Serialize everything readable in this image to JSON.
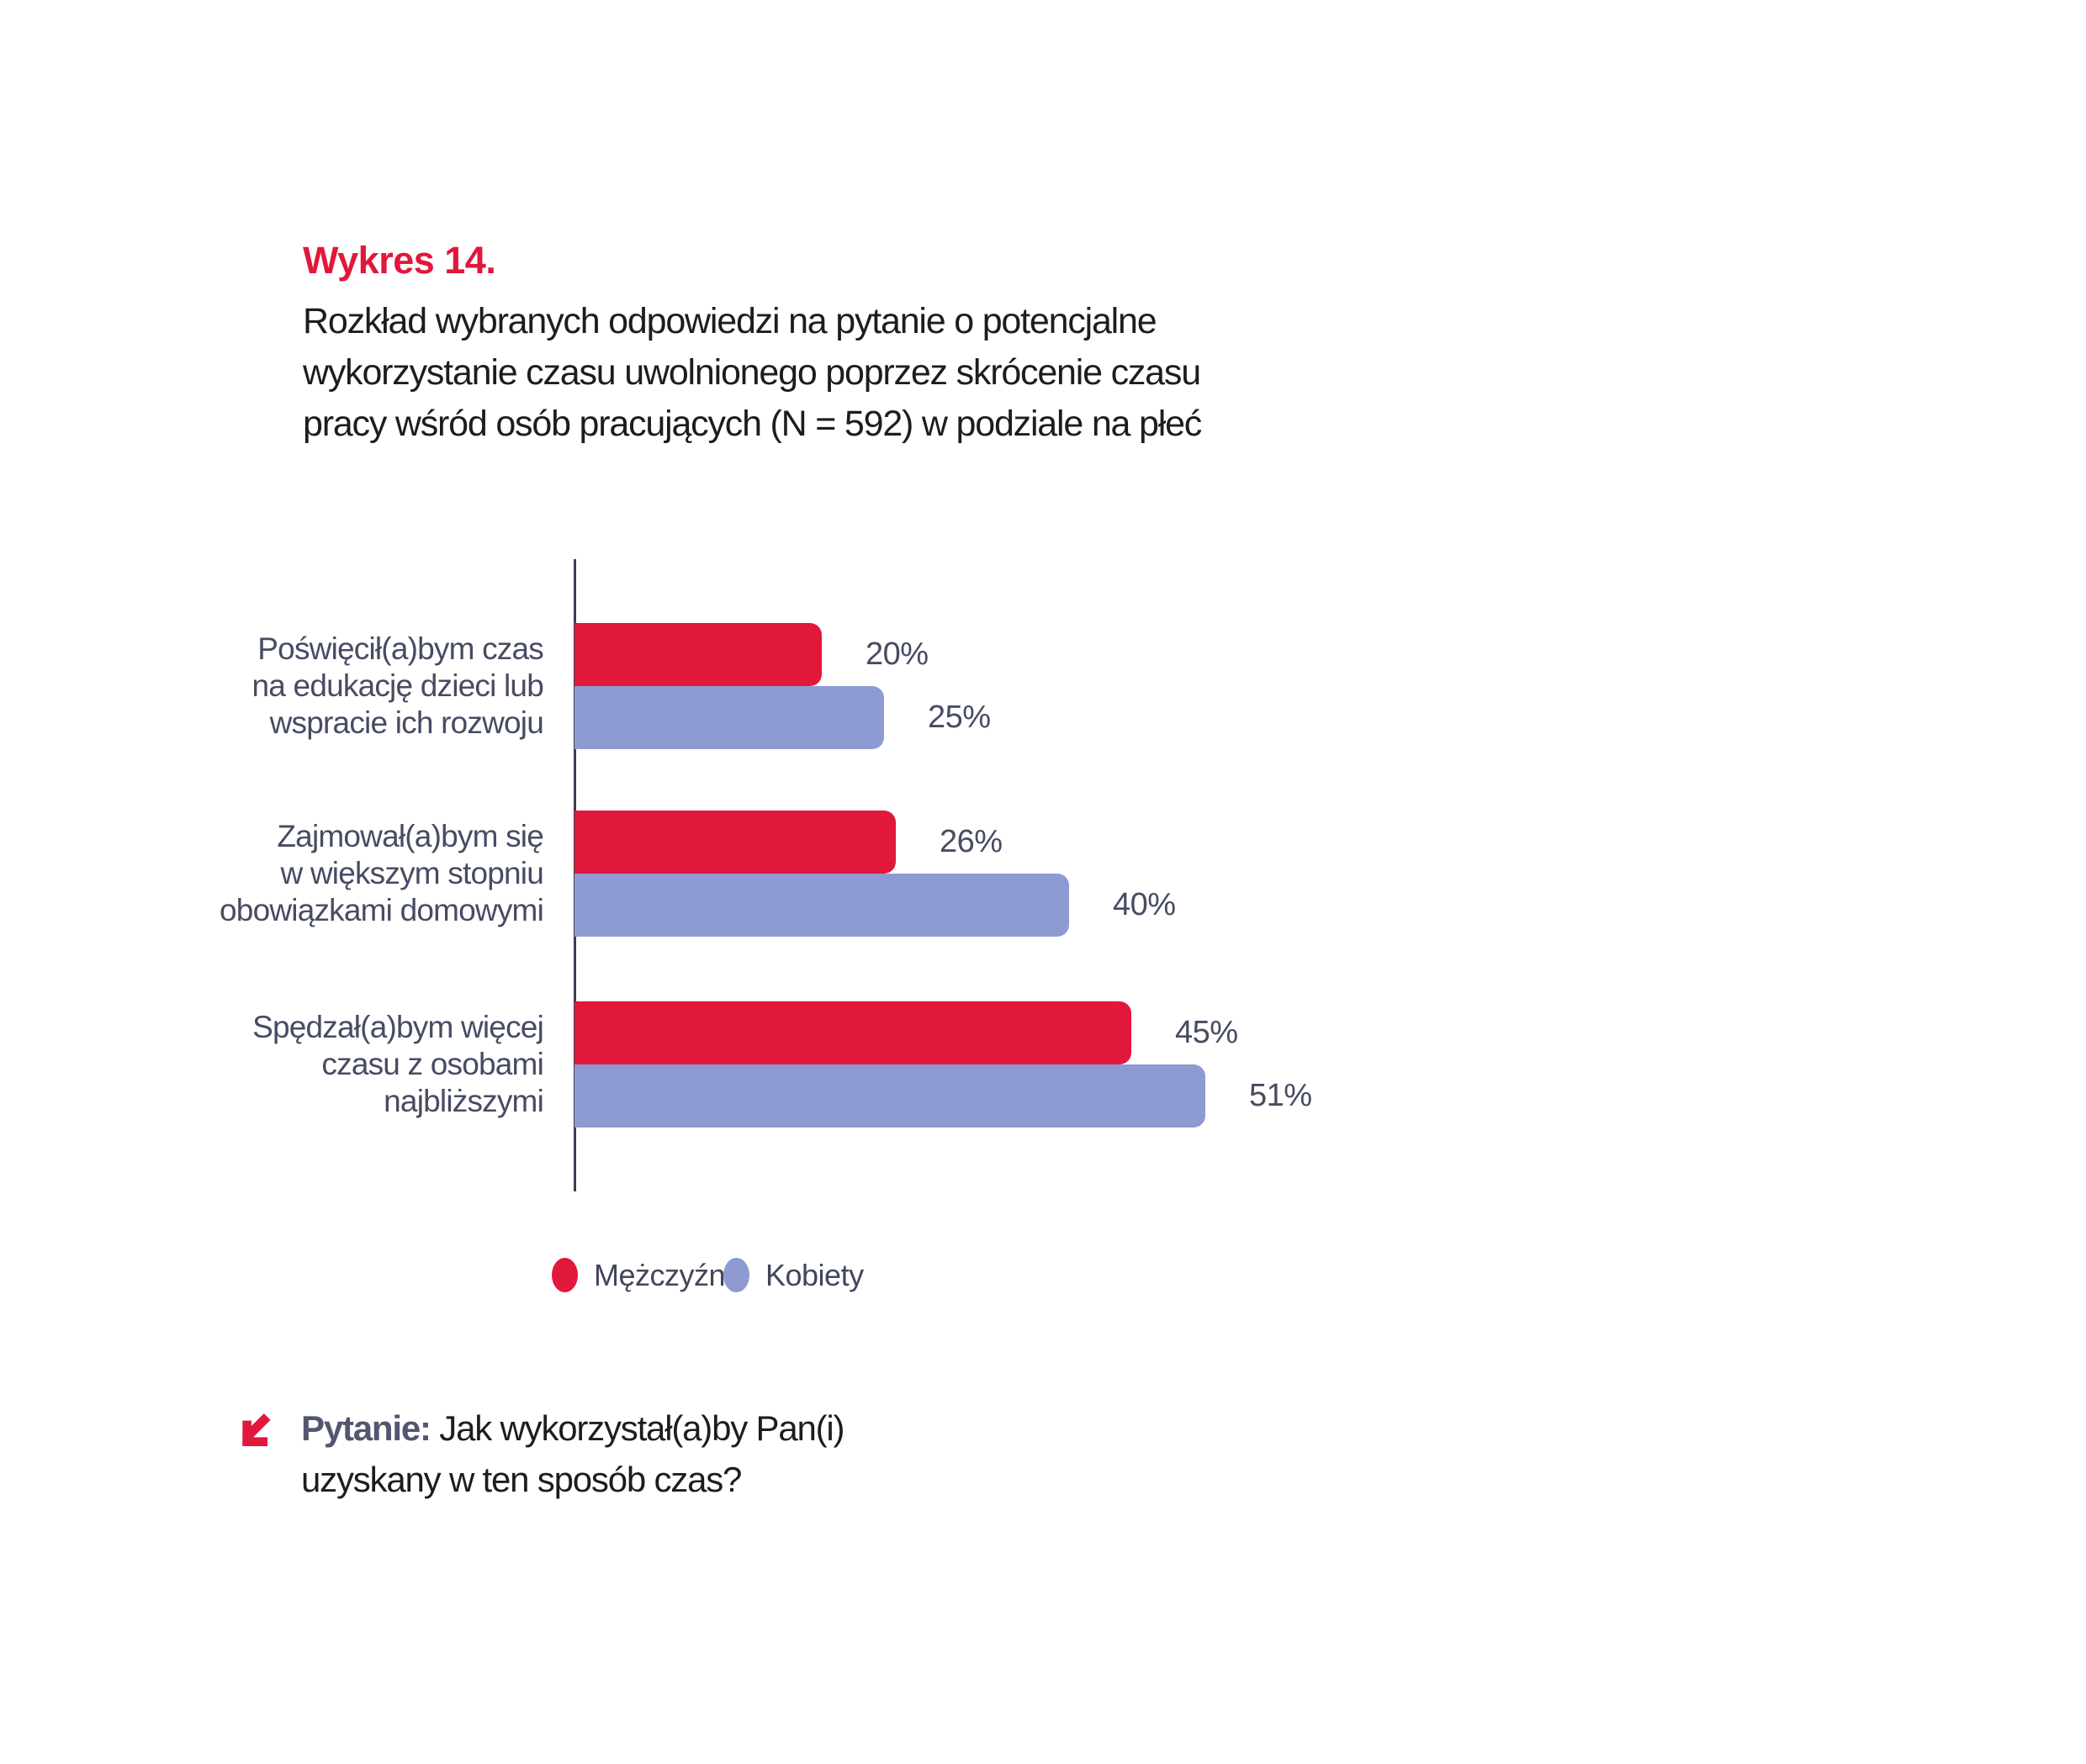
{
  "figure": {
    "label": "Wykres 14.",
    "title_lines": [
      "Rozkład wybranych odpowiedzi na pytanie o potencjalne",
      "wykorzystanie czasu uwolnionego poprzez skrócenie czasu",
      "pracy wśród osób pracujących (N = 592) w podziale na płeć"
    ]
  },
  "chart_data": {
    "type": "bar",
    "orientation": "horizontal",
    "unit": "%",
    "grid": false,
    "xlim": [
      0,
      55
    ],
    "legend_position": "bottom",
    "categories": [
      [
        "Poświęcił(a)bym czas",
        "na edukację dzieci lub",
        "wspracie ich rozwoju"
      ],
      [
        "Zajmował(a)bym się",
        "w większym stopniu",
        "obowiązkami domowymi"
      ],
      [
        "Spędzał(a)bym więcej",
        "czasu z osobami",
        "najbliższymi"
      ]
    ],
    "series": [
      {
        "name": "Mężczyźni",
        "color": "#e2173c",
        "values": [
          20,
          26,
          45
        ]
      },
      {
        "name": "Kobiety",
        "color": "#8d9bd2",
        "values": [
          25,
          40,
          51
        ]
      }
    ],
    "value_labels": [
      [
        "20%",
        "25%"
      ],
      [
        "26%",
        "40%"
      ],
      [
        "45%",
        "51%"
      ]
    ]
  },
  "question": {
    "prefix": "Pytanie:",
    "line1": "Jak wykorzystał(a)by Pan(i)",
    "line2": "uzyskany w ten sposób czas?"
  },
  "colors": {
    "accent_red": "#e2173c",
    "accent_blue": "#8d9bd2",
    "heading_text": "#1d1d1f",
    "chart_text": "#474b63",
    "axis_line": "#3a3e54",
    "question_prefix": "#53566f"
  }
}
